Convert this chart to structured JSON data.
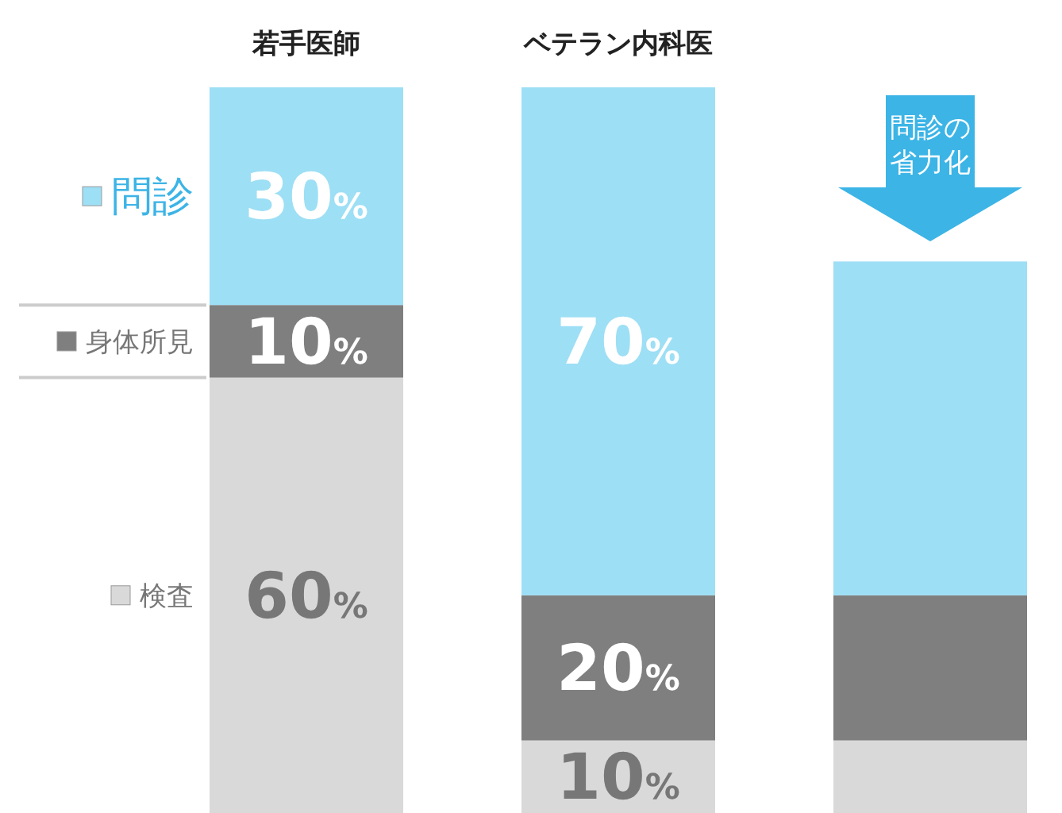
{
  "chart_data": {
    "type": "bar",
    "stacked": true,
    "categories": [
      "若手医師",
      "ベテラン内科医",
      null
    ],
    "ylim": [
      0,
      100
    ],
    "tick_labels": "x",
    "legend": "left",
    "series": [
      {
        "name": "検査",
        "color": "#d9d9d9",
        "values": [
          60,
          10,
          10
        ],
        "value_labels": [
          "60%",
          "10%",
          null
        ]
      },
      {
        "name": "身体所見",
        "color": "#7f7f7f",
        "values": [
          10,
          20,
          20
        ],
        "value_labels": [
          "10%",
          "20%",
          null
        ]
      },
      {
        "name": "問診",
        "color": "#9ddff5",
        "values": [
          30,
          70,
          46
        ],
        "value_labels": [
          "30%",
          "70%",
          null
        ]
      }
    ],
    "annotations": [
      "問診の省力化"
    ]
  }
}
